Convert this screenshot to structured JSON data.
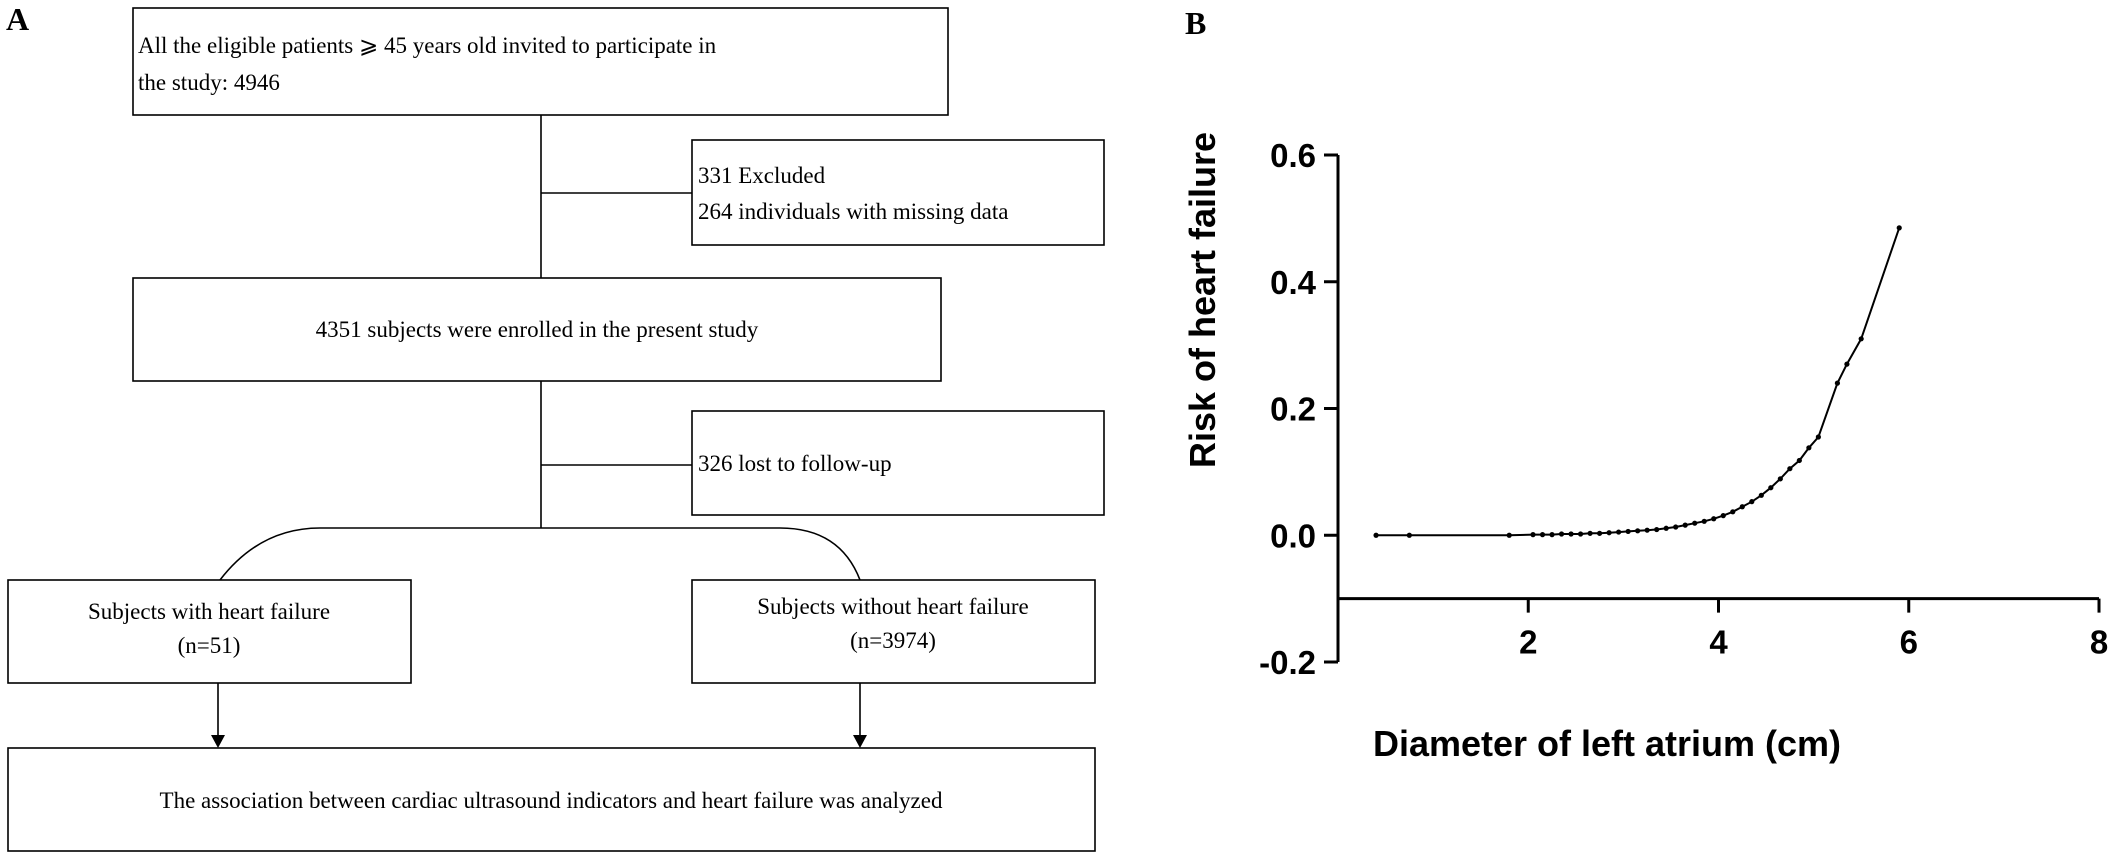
{
  "panel_a": {
    "label": "A",
    "box_invite": {
      "line1": "All the eligible patients ⩾ 45 years old invited to participate in",
      "line2": "the study: 4946"
    },
    "box_excluded": {
      "line1": "331 Excluded",
      "line2": "264 individuals with missing data"
    },
    "box_enrolled": "4351 subjects were enrolled in the present study",
    "box_lost": "326 lost to follow-up",
    "box_hf": {
      "line1": "Subjects with heart failure",
      "line2": "(n=51)"
    },
    "box_no_hf": {
      "line1": "Subjects without heart failure",
      "line2": "(n=3974)"
    },
    "box_result": "The association between cardiac ultrasound indicators and heart failure was analyzed"
  },
  "panel_b": {
    "label": "B"
  },
  "chart_data": {
    "type": "line",
    "title": "",
    "xlabel": "Diameter of left atrium (cm)",
    "ylabel": "Risk of heart failure",
    "xlim": [
      0,
      8
    ],
    "ylim": [
      -0.2,
      0.6
    ],
    "xticks": [
      "2",
      "4",
      "6",
      "8"
    ],
    "yticks": [
      "-0.2",
      "0.0",
      "0.2",
      "0.4",
      "0.6"
    ],
    "x_axis_crosses_y": -0.1,
    "grid": false,
    "series": [
      {
        "x": [
          0.4,
          0.75,
          1.8,
          2.05,
          2.15,
          2.25,
          2.35,
          2.45,
          2.55,
          2.65,
          2.75,
          2.85,
          2.95,
          3.05,
          3.15,
          3.25,
          3.35,
          3.45,
          3.55,
          3.65,
          3.75,
          3.85,
          3.95,
          4.05,
          4.15,
          4.25,
          4.35,
          4.45,
          4.55,
          4.65,
          4.75,
          4.85,
          4.95,
          5.05,
          5.25,
          5.35,
          5.5,
          5.9
        ],
        "y": [
          0.0,
          0.0,
          0.0,
          0.001,
          0.001,
          0.001,
          0.002,
          0.002,
          0.002,
          0.003,
          0.003,
          0.004,
          0.005,
          0.006,
          0.007,
          0.008,
          0.009,
          0.011,
          0.013,
          0.016,
          0.019,
          0.022,
          0.026,
          0.031,
          0.037,
          0.045,
          0.053,
          0.063,
          0.075,
          0.089,
          0.105,
          0.118,
          0.138,
          0.155,
          0.24,
          0.27,
          0.31,
          0.485
        ]
      }
    ]
  }
}
